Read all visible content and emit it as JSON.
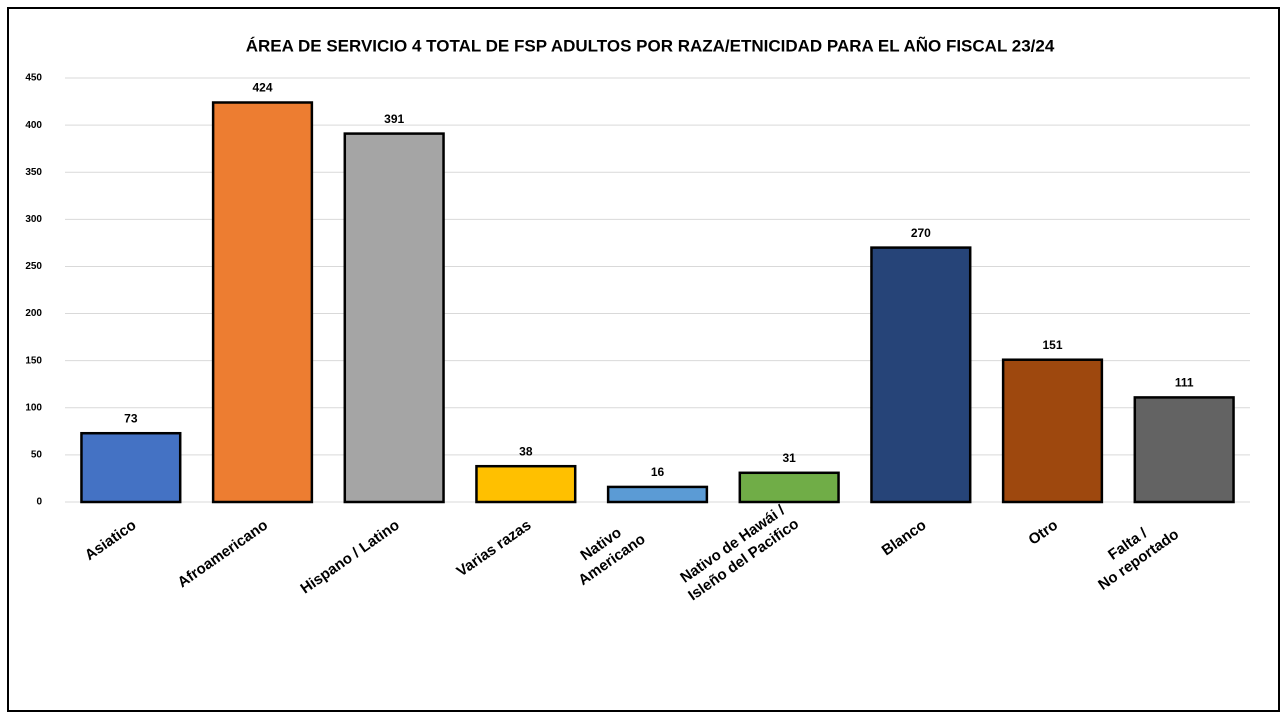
{
  "chart_data": {
    "type": "bar",
    "title": "ÁREA DE SERVICIO 4 TOTAL DE FSP ADULTOS POR RAZA/ETNICIDAD PARA EL AÑO FISCAL 23/24",
    "categories": [
      "Asiatico",
      "Afroamericano",
      "Hispano / Latino",
      "Varias razas",
      "Nativo\nAmericano",
      "Nativo de Hawái /\nIsleño del Pacifico",
      "Blanco",
      "Otro",
      "Falta /\nNo reportado"
    ],
    "values": [
      73,
      424,
      391,
      38,
      16,
      31,
      270,
      151,
      111
    ],
    "colors": [
      "#4472c4",
      "#ed7d31",
      "#a5a5a5",
      "#ffc000",
      "#5b9bd5",
      "#70ad47",
      "#264478",
      "#9e480e",
      "#636363"
    ],
    "ylim": [
      0,
      450
    ],
    "yticks": [
      0,
      50,
      100,
      150,
      200,
      250,
      300,
      350,
      400,
      450
    ],
    "grid": true
  }
}
